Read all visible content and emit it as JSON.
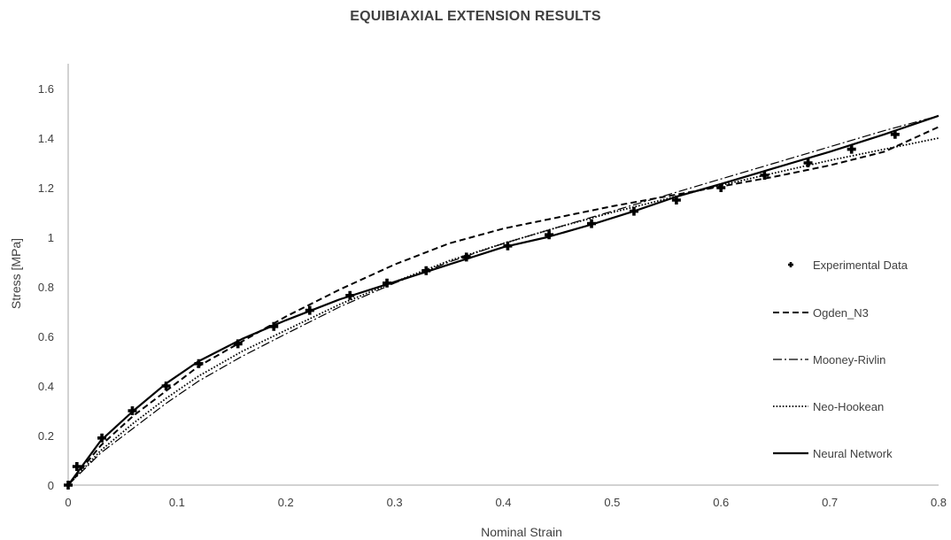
{
  "chart_data": {
    "type": "line",
    "title": "EQUIBIAXIAL EXTENSION RESULTS",
    "xlabel": "Nominal Strain",
    "ylabel": "Stress [MPa]",
    "xlim": [
      0,
      0.8
    ],
    "ylim": [
      0,
      1.7
    ],
    "xticks": [
      0,
      0.1,
      0.2,
      0.3,
      0.4,
      0.5,
      0.6,
      0.7,
      0.8
    ],
    "xtick_labels": [
      "0",
      "0.1",
      "0.2",
      "0.3",
      "0.4",
      "0.5",
      "0.6",
      "0.7",
      "0.8"
    ],
    "yticks": [
      0,
      0.2,
      0.4,
      0.6,
      0.8,
      1.0,
      1.2,
      1.4,
      1.6
    ],
    "ytick_labels": [
      "0",
      "0.2",
      "0.4",
      "0.6",
      "0.8",
      "1",
      "1.2",
      "1.4",
      "1.6"
    ],
    "grid": false,
    "legend_position": "right",
    "scatter": {
      "name": "Experimental Data",
      "x": [
        0,
        0.008,
        0.031,
        0.059,
        0.09,
        0.12,
        0.156,
        0.189,
        0.222,
        0.259,
        0.293,
        0.329,
        0.366,
        0.404,
        0.442,
        0.481,
        0.52,
        0.559,
        0.6,
        0.64,
        0.68,
        0.72,
        0.76
      ],
      "y": [
        0,
        0.075,
        0.19,
        0.3,
        0.4,
        0.49,
        0.57,
        0.64,
        0.705,
        0.765,
        0.815,
        0.865,
        0.92,
        0.965,
        1.01,
        1.055,
        1.105,
        1.15,
        1.2,
        1.25,
        1.3,
        1.355,
        1.415
      ]
    },
    "series": [
      {
        "name": "Ogden_N3",
        "style": "dashed",
        "x": [
          0,
          0.03,
          0.06,
          0.09,
          0.12,
          0.16,
          0.2,
          0.25,
          0.3,
          0.35,
          0.4,
          0.45,
          0.5,
          0.55,
          0.6,
          0.65,
          0.7,
          0.75,
          0.8
        ],
        "y": [
          0,
          0.16,
          0.28,
          0.38,
          0.48,
          0.58,
          0.68,
          0.79,
          0.89,
          0.975,
          1.035,
          1.08,
          1.125,
          1.165,
          1.205,
          1.245,
          1.29,
          1.345,
          1.445
        ]
      },
      {
        "name": "Mooney-Rivlin",
        "style": "dashdot",
        "x": [
          0,
          0.03,
          0.06,
          0.09,
          0.12,
          0.16,
          0.2,
          0.25,
          0.3,
          0.35,
          0.4,
          0.45,
          0.5,
          0.55,
          0.6,
          0.65,
          0.7,
          0.75,
          0.8
        ],
        "y": [
          0,
          0.13,
          0.23,
          0.33,
          0.42,
          0.52,
          0.61,
          0.72,
          0.815,
          0.9,
          0.975,
          1.04,
          1.105,
          1.17,
          1.235,
          1.3,
          1.365,
          1.43,
          1.49
        ]
      },
      {
        "name": "Neo-Hookean",
        "style": "dotted",
        "x": [
          0,
          0.03,
          0.06,
          0.09,
          0.12,
          0.16,
          0.2,
          0.25,
          0.3,
          0.35,
          0.4,
          0.45,
          0.5,
          0.55,
          0.6,
          0.65,
          0.7,
          0.75,
          0.8
        ],
        "y": [
          0,
          0.14,
          0.25,
          0.35,
          0.44,
          0.54,
          0.625,
          0.73,
          0.82,
          0.905,
          0.975,
          1.04,
          1.1,
          1.155,
          1.21,
          1.26,
          1.31,
          1.355,
          1.4
        ]
      },
      {
        "name": "Neural Network",
        "style": "solid",
        "x": [
          0,
          0.03,
          0.06,
          0.09,
          0.12,
          0.16,
          0.2,
          0.25,
          0.3,
          0.35,
          0.4,
          0.44,
          0.48,
          0.52,
          0.56,
          0.6,
          0.65,
          0.7,
          0.75,
          0.8
        ],
        "y": [
          0,
          0.18,
          0.3,
          0.41,
          0.5,
          0.59,
          0.665,
          0.75,
          0.82,
          0.89,
          0.96,
          1.0,
          1.05,
          1.105,
          1.165,
          1.215,
          1.28,
          1.345,
          1.415,
          1.49
        ]
      }
    ]
  }
}
